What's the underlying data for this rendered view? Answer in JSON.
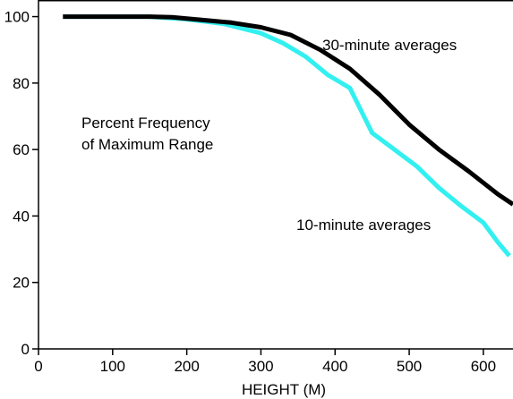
{
  "chart_data": {
    "type": "line",
    "xlabel": "HEIGHT (M)",
    "ylabel": "",
    "xlim": [
      0,
      640
    ],
    "ylim": [
      0,
      105
    ],
    "xticks": [
      0,
      100,
      200,
      300,
      400,
      500,
      600
    ],
    "yticks": [
      0,
      20,
      40,
      60,
      80,
      100
    ],
    "grid": false,
    "annotation_lines": [
      "Percent Frequency",
      "of Maximum Range"
    ],
    "series": [
      {
        "name": "30-minute averages",
        "color": "#000000",
        "x": [
          33,
          100,
          150,
          180,
          220,
          260,
          300,
          340,
          380,
          420,
          460,
          500,
          540,
          580,
          620,
          640
        ],
        "y": [
          100,
          100,
          100,
          99.8,
          99,
          98.2,
          96.8,
          94.5,
          90,
          84.3,
          76.5,
          67.5,
          60,
          53.5,
          46.5,
          43.5
        ]
      },
      {
        "name": "10-minute averages",
        "color": "#33F0F0",
        "x": [
          33,
          100,
          150,
          200,
          250,
          300,
          330,
          360,
          390,
          420,
          450,
          480,
          510,
          540,
          570,
          600,
          620,
          635
        ],
        "y": [
          100,
          100,
          100,
          99.2,
          97.8,
          95,
          92,
          88,
          82.5,
          78.5,
          65,
          60,
          55,
          48.5,
          43,
          38,
          32,
          28
        ]
      }
    ]
  }
}
